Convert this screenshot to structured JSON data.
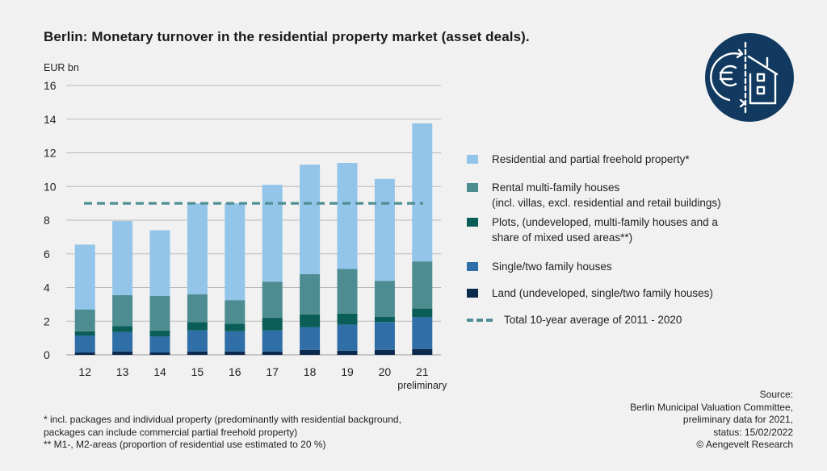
{
  "title": "Berlin: Monetary turnover in the residential property market (asset deals).",
  "colors": {
    "residential": "#92c5e9",
    "rental": "#4d8d92",
    "plots": "#0b5e58",
    "single": "#2f6ea6",
    "land": "#0c2a4e",
    "average": "#4f8f94",
    "logo_bg": "#123a60"
  },
  "chart_data": {
    "type": "bar",
    "stacked": true,
    "ylabel": "EUR bn",
    "ylim": [
      0,
      16
    ],
    "yticks": [
      "0",
      "2",
      "4",
      "6",
      "8",
      "10",
      "12",
      "14",
      "16"
    ],
    "categories": [
      "12",
      "13",
      "14",
      "15",
      "16",
      "17",
      "18",
      "19",
      "20",
      "21"
    ],
    "category_sublabels": [
      "",
      "",
      "",
      "",
      "",
      "",
      "",
      "",
      "",
      "preliminary"
    ],
    "grid": true,
    "series": [
      {
        "name": "Land (undeveloped, single/two family houses)",
        "color_key": "land",
        "values": [
          0.15,
          0.2,
          0.15,
          0.2,
          0.2,
          0.2,
          0.3,
          0.25,
          0.3,
          0.35
        ]
      },
      {
        "name": "Single/two family houses",
        "color_key": "single",
        "values": [
          1.0,
          1.15,
          0.95,
          1.25,
          1.2,
          1.25,
          1.35,
          1.55,
          1.65,
          1.9
        ]
      },
      {
        "name": "Plots, (undeveloped, multi-family houses and a share of mixed used areas**)",
        "color_key": "plots",
        "values": [
          0.25,
          0.35,
          0.35,
          0.5,
          0.45,
          0.75,
          0.75,
          0.65,
          0.3,
          0.5
        ]
      },
      {
        "name": "Rental multi-family houses\n(incl. villas, excl. residential and retail buildings)",
        "color_key": "rental",
        "values": [
          1.3,
          1.85,
          2.05,
          1.65,
          1.4,
          2.15,
          2.4,
          2.65,
          2.15,
          2.8
        ]
      },
      {
        "name": "Residential and partial freehold property*",
        "color_key": "residential",
        "values": [
          3.85,
          4.4,
          3.9,
          5.4,
          5.75,
          5.75,
          6.5,
          6.3,
          6.05,
          8.2
        ]
      }
    ],
    "reference_line": {
      "name": "Total 10-year average of 2011 - 2020",
      "value": 9.0
    }
  },
  "legend_order": [
    "Residential and partial freehold property*",
    "Rental multi-family houses\n(incl. villas, excl. residential and retail buildings)",
    "Plots, (undeveloped, multi-family houses and a share of mixed used areas**)",
    "Single/two family houses",
    "Land (undeveloped, single/two family houses)",
    "Total 10-year average of 2011 - 2020"
  ],
  "legend": {
    "residential": "Residential and partial freehold property*",
    "rental": "Rental multi-family houses\n(incl. villas, excl. residential and retail buildings)",
    "plots": "Plots, (undeveloped, multi-family houses and a\nshare of mixed used areas**)",
    "single": "Single/two family houses",
    "land": "Land (undeveloped, single/two family houses)",
    "average": "Total 10-year average of 2011 - 2020"
  },
  "footnote": "* incl. packages and individual property (predominantly with residential background,\npackages can include commercial partial freehold property)\n** M1-, M2-areas (proportion of residential use estimated to 20 %)",
  "source": "Source:\nBerlin Municipal Valuation Committee,\npreliminary data for 2021,\nstatus: 15/02/2022\n© Aengevelt Research",
  "logo_icon": "euro-house-icon"
}
